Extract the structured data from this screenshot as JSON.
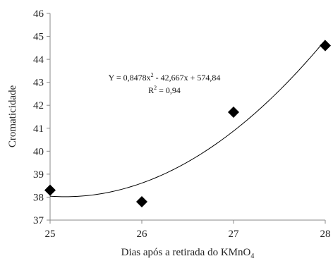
{
  "chart_data": {
    "type": "scatter",
    "xlabel": "Dias após a retirada do KMnO",
    "xlabel_subscript": "4",
    "ylabel": "Cromaticidade",
    "xlim": [
      25,
      28
    ],
    "ylim": [
      37,
      46
    ],
    "xticks": [
      "25",
      "26",
      "27",
      "28"
    ],
    "yticks": [
      "37",
      "38",
      "39",
      "40",
      "41",
      "42",
      "43",
      "44",
      "45",
      "46"
    ],
    "grid": false,
    "marker": "diamond",
    "marker_color": "#000000",
    "points": [
      {
        "x": 25,
        "y": 38.3
      },
      {
        "x": 26,
        "y": 37.8
      },
      {
        "x": 27,
        "y": 41.7
      },
      {
        "x": 28,
        "y": 44.6
      }
    ],
    "trendline": {
      "type": "polynomial",
      "coefficients": [
        0.8478,
        -42.667,
        574.84
      ],
      "equation_prefix": "Y = 0,8478x",
      "equation_exp": "2",
      "equation_suffix": " - 42,667x + 574,84",
      "r2_prefix": "R",
      "r2_exp": "2",
      "r2_suffix": " = 0,94"
    }
  }
}
